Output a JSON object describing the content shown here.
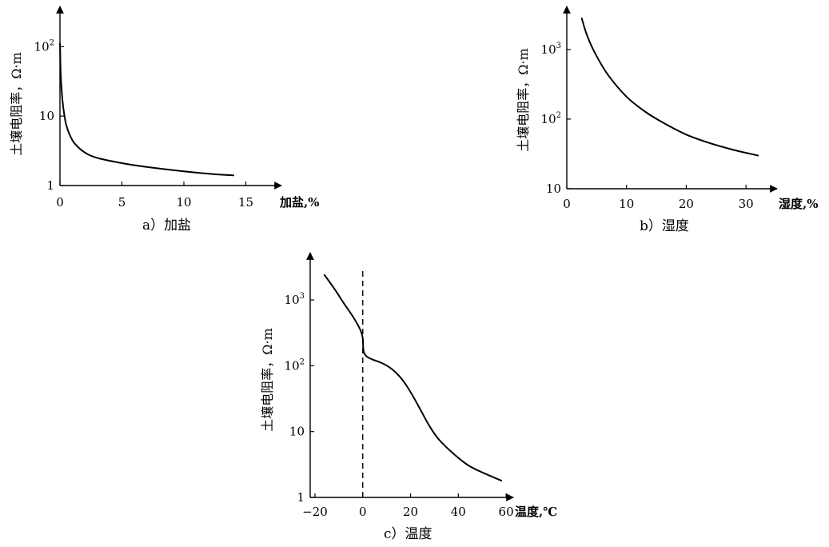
{
  "chart_data": [
    {
      "id": "a",
      "type": "line",
      "caption": "a）加盐",
      "ylabel": "土壤电阻率，Ω·m",
      "xlabel": "加盐,%",
      "y_scale": "log",
      "xlim": [
        0,
        16
      ],
      "ylim": [
        1,
        150
      ],
      "x_ticks": [
        0,
        5,
        10,
        15
      ],
      "y_ticks": [
        {
          "value": 1,
          "base": "1",
          "exp": ""
        },
        {
          "value": 10,
          "base": "10",
          "exp": ""
        },
        {
          "value": 100,
          "base": "10",
          "exp": "2"
        }
      ],
      "series": [
        {
          "x": [
            0.0,
            0.02,
            0.05,
            0.1,
            0.2,
            0.35,
            0.5,
            0.8,
            1.2,
            2.0,
            3.0,
            5.0,
            7.0,
            10.0,
            12.0,
            14.0
          ],
          "y": [
            110,
            80,
            45,
            30,
            17,
            10.5,
            7.5,
            5.3,
            4.0,
            3.0,
            2.5,
            2.1,
            1.85,
            1.6,
            1.48,
            1.4
          ]
        }
      ]
    },
    {
      "id": "b",
      "type": "line",
      "caption": "b）湿度",
      "ylabel": "土壤电阻率，Ω·m",
      "xlabel": "湿度,%",
      "y_scale": "log",
      "xlim": [
        0,
        36
      ],
      "ylim": [
        10,
        4500
      ],
      "x_ticks": [
        0,
        10,
        20,
        30
      ],
      "y_ticks": [
        {
          "value": 10,
          "base": "10",
          "exp": ""
        },
        {
          "value": 100,
          "base": "10",
          "exp": "2"
        },
        {
          "value": 1000,
          "base": "10",
          "exp": "3"
        }
      ],
      "series": [
        {
          "x": [
            2.5,
            3.5,
            5,
            7,
            10,
            13,
            16,
            20,
            24,
            28,
            32
          ],
          "y": [
            2800,
            1500,
            800,
            420,
            210,
            130,
            90,
            60,
            45,
            36,
            30
          ]
        }
      ]
    },
    {
      "id": "c",
      "type": "line",
      "caption": "c）温度",
      "ylabel": "土壤电阻率，Ω·m",
      "xlabel": "温度,℃",
      "y_scale": "log",
      "xlim": [
        -22,
        70
      ],
      "ylim": [
        1,
        6000
      ],
      "x_ticks": [
        {
          "value": -20,
          "label": "−20"
        },
        {
          "value": 0,
          "label": "0"
        },
        {
          "value": 20,
          "label": "20"
        },
        {
          "value": 40,
          "label": "40"
        },
        {
          "value": 60,
          "label": "60"
        }
      ],
      "y_ticks": [
        {
          "value": 1,
          "base": "1",
          "exp": ""
        },
        {
          "value": 10,
          "base": "10",
          "exp": ""
        },
        {
          "value": 100,
          "base": "10",
          "exp": "2"
        },
        {
          "value": 1000,
          "base": "10",
          "exp": "3"
        }
      ],
      "vline_x": 0,
      "series": [
        {
          "x": [
            -16,
            -12,
            -8,
            -4,
            -1,
            0,
            0.3,
            1.5,
            4,
            8,
            12,
            16,
            20,
            24,
            28,
            32,
            38,
            44,
            50,
            58
          ],
          "y": [
            2400,
            1500,
            900,
            550,
            350,
            260,
            170,
            140,
            125,
            110,
            90,
            65,
            40,
            22,
            12,
            7.5,
            4.6,
            3.1,
            2.4,
            1.8
          ]
        }
      ]
    }
  ]
}
